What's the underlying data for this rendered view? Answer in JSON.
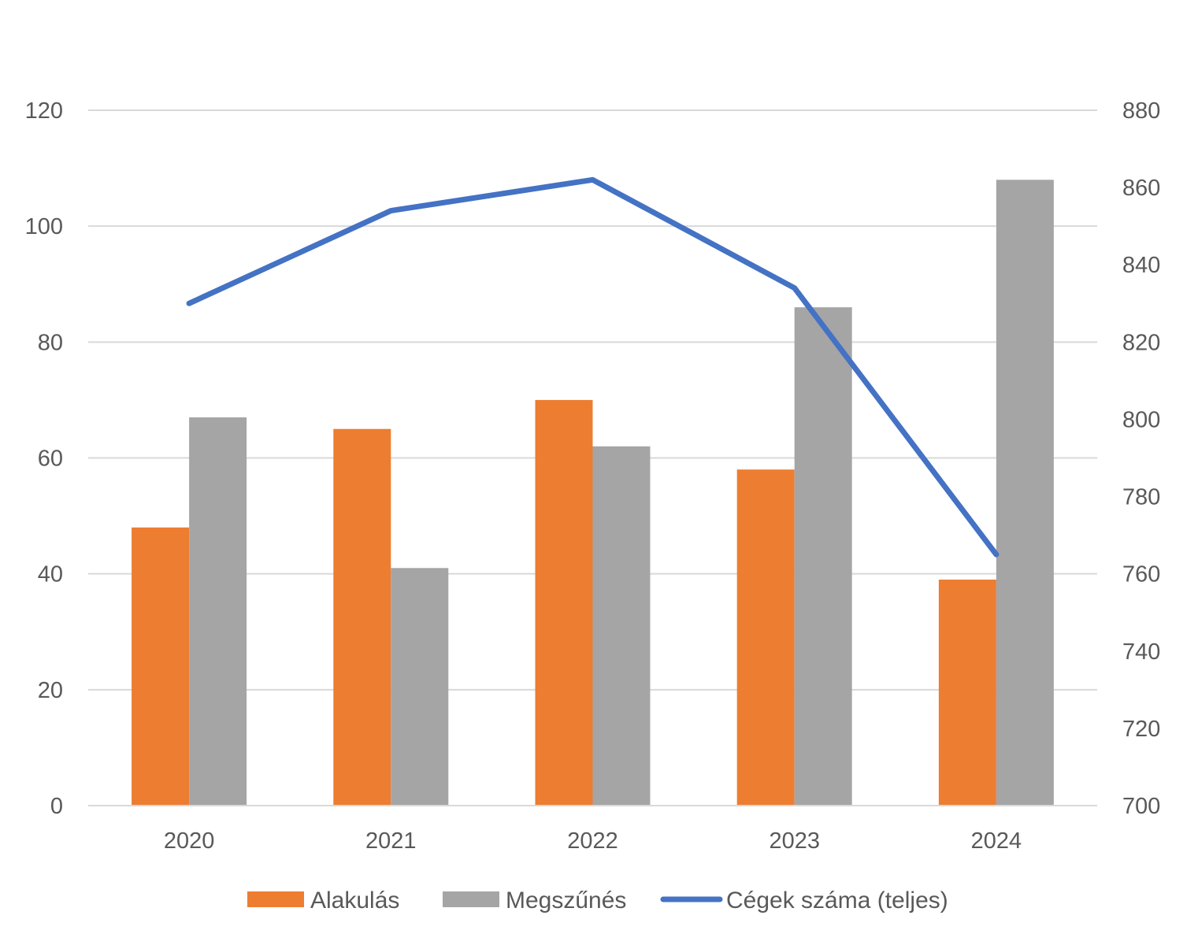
{
  "chart_data": {
    "type": "bar",
    "categories": [
      "2020",
      "2021",
      "2022",
      "2023",
      "2024"
    ],
    "y_left": {
      "ticks": [
        "0",
        "20",
        "40",
        "60",
        "80",
        "100",
        "120"
      ],
      "ylim": [
        0,
        120
      ]
    },
    "y_right": {
      "ticks": [
        "700",
        "720",
        "740",
        "760",
        "780",
        "800",
        "820",
        "840",
        "860",
        "880"
      ],
      "ylim": [
        700,
        880
      ]
    },
    "series": [
      {
        "name": "Alakulás",
        "kind": "bar",
        "axis": "left",
        "color": "#ED7D31",
        "values": [
          48,
          65,
          70,
          58,
          39
        ]
      },
      {
        "name": "Megszűnés",
        "kind": "bar",
        "axis": "left",
        "color": "#A5A5A5",
        "values": [
          67,
          41,
          62,
          86,
          108
        ]
      },
      {
        "name": "Cégek száma (teljes)",
        "kind": "line",
        "axis": "right",
        "color": "#4472C4",
        "values": [
          830,
          854,
          862,
          834,
          765
        ]
      }
    ],
    "grid": true,
    "legend_position": "bottom"
  }
}
